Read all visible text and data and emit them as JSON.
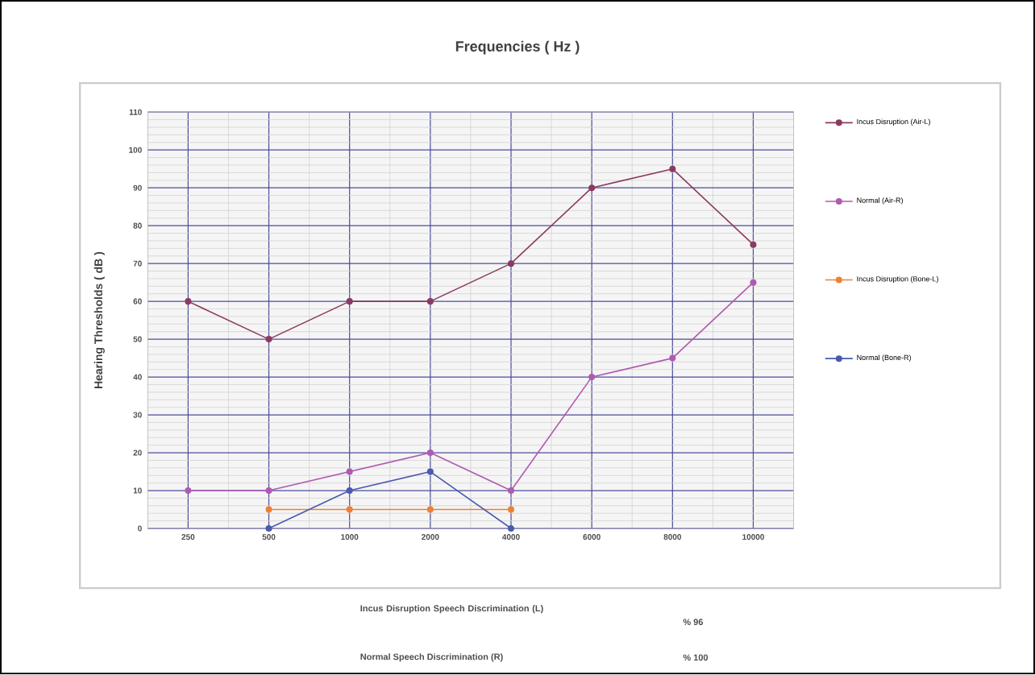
{
  "chart_data": {
    "type": "line",
    "title": "Frequencies ( Hz )",
    "ylabel": "Hearing Thresholds ( dB )",
    "categories": [
      "250",
      "500",
      "1000",
      "2000",
      "4000",
      "6000",
      "8000",
      "10000"
    ],
    "series": [
      {
        "name": "Incus Disruption (Air-L)",
        "color": "#8b3a62",
        "values": [
          60,
          50,
          60,
          60,
          70,
          90,
          95,
          75
        ]
      },
      {
        "name": "Normal (Air-R)",
        "color": "#b05ab0",
        "values": [
          10,
          10,
          15,
          20,
          10,
          40,
          45,
          65
        ]
      },
      {
        "name": "Incus Disruption (Bone-L)",
        "color": "#f08030",
        "values": [
          null,
          5,
          5,
          5,
          5,
          null,
          null,
          null
        ]
      },
      {
        "name": "Normal (Bone-R)",
        "color": "#4a5ab0",
        "values": [
          null,
          0,
          10,
          15,
          0,
          null,
          null,
          null
        ]
      }
    ],
    "ylim": [
      0,
      110
    ],
    "yticks": [
      0,
      10,
      20,
      30,
      40,
      50,
      60,
      70,
      80,
      90,
      100,
      110
    ],
    "grid": true,
    "legend": "right",
    "marker": "circle",
    "line_style": "solid",
    "annotations": [
      "Incus Disruption Speech Discrimination (L)",
      "% 96",
      "Normal Speech Discrimination (R)",
      "% 100"
    ]
  }
}
